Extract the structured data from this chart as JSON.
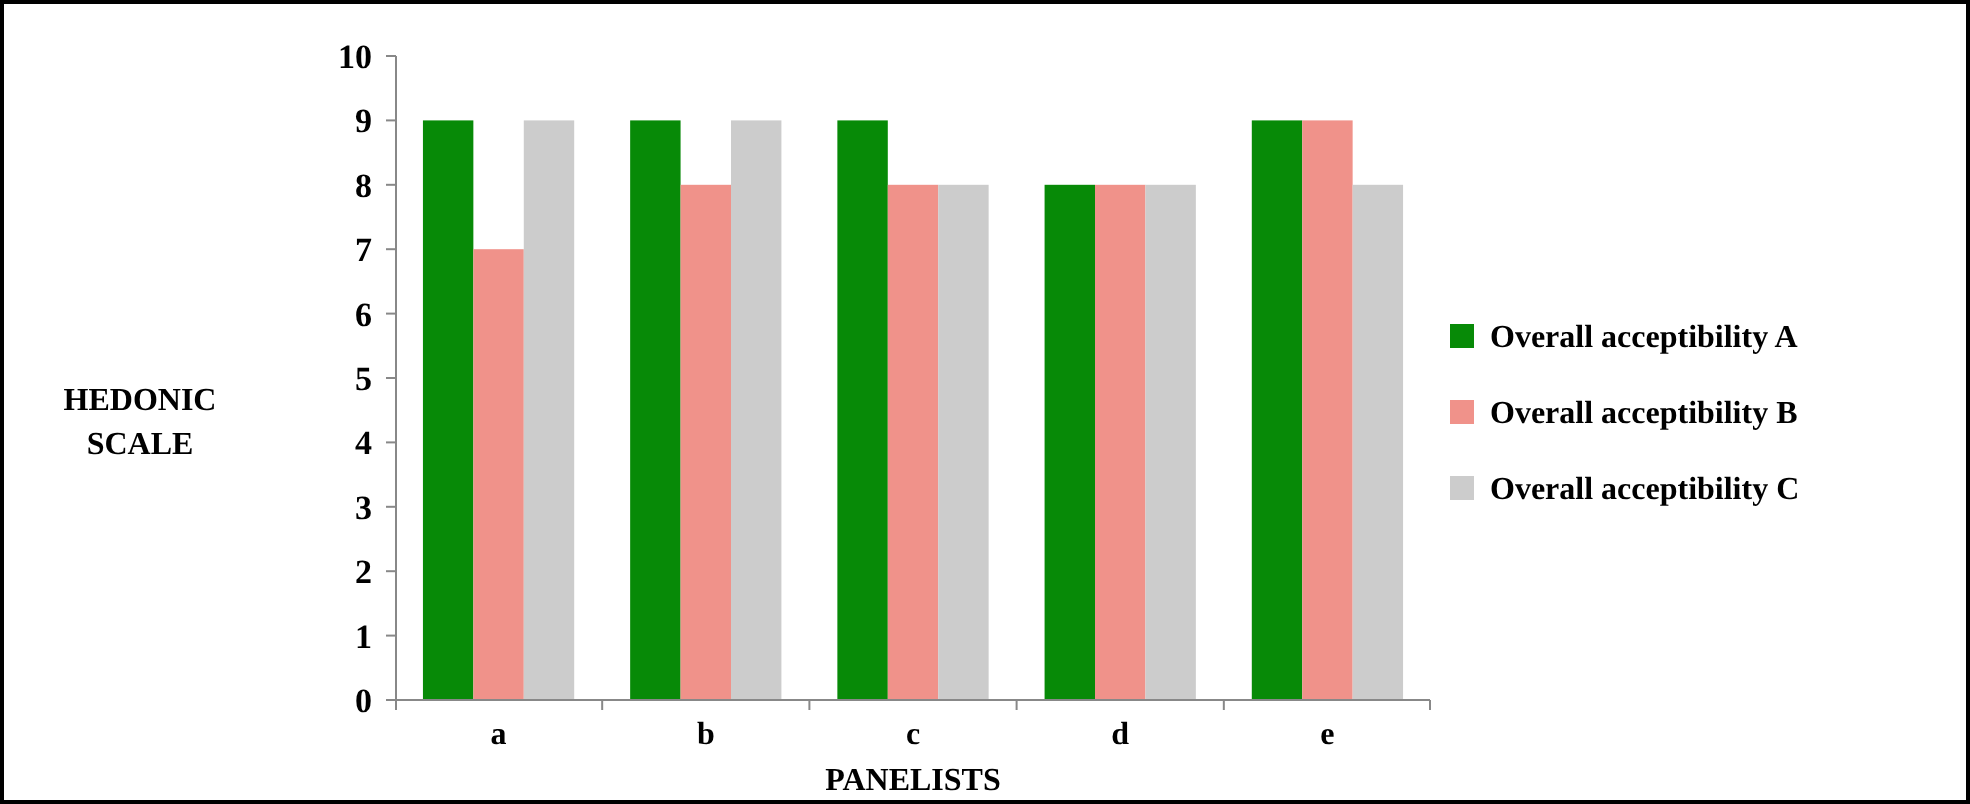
{
  "chart_data": {
    "type": "bar",
    "xlabel": "PANELISTS",
    "ylabel": "HEDONIC SCALE",
    "categories": [
      "a",
      "b",
      "c",
      "d",
      "e"
    ],
    "series": [
      {
        "name": "Overall acceptibility A",
        "color": "#078a07",
        "values": [
          9,
          9,
          9,
          8,
          9
        ]
      },
      {
        "name": "Overall acceptibility B",
        "color": "#f0928a",
        "values": [
          7,
          8,
          8,
          8,
          9
        ]
      },
      {
        "name": "Overall acceptibility C",
        "color": "#cccccc",
        "values": [
          9,
          9,
          8,
          8,
          8
        ]
      }
    ],
    "ylim": [
      0,
      10
    ],
    "yticks": [
      0,
      1,
      2,
      3,
      4,
      5,
      6,
      7,
      8,
      9,
      10
    ],
    "grid": false,
    "legend": "right"
  }
}
